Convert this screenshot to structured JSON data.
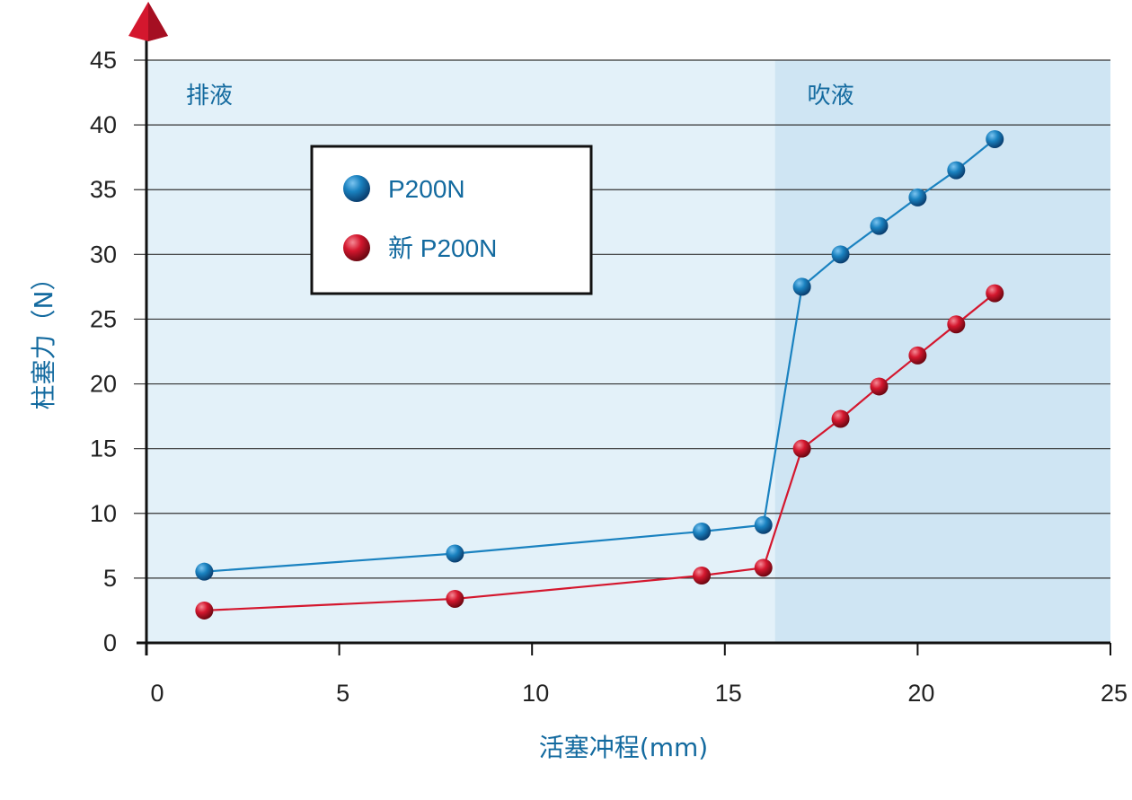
{
  "chart_data": {
    "type": "line",
    "xlabel": "活塞冲程(mm)",
    "ylabel": "柱塞力（N）",
    "xlim": [
      0,
      25
    ],
    "ylim": [
      0,
      45
    ],
    "x_ticks": [
      0,
      5,
      10,
      15,
      20,
      25
    ],
    "y_ticks": [
      0,
      5,
      10,
      15,
      20,
      25,
      30,
      35,
      40,
      45
    ],
    "grid": "horizontal",
    "regions": [
      {
        "label": "排液",
        "x_start": 0,
        "x_end": 16.3,
        "color": "#e3f1f9"
      },
      {
        "label": "吹液",
        "x_start": 16.3,
        "x_end": 25,
        "color": "#cfe5f3"
      }
    ],
    "legend_position": "upper-left",
    "series": [
      {
        "name": "P200N",
        "color": "#1a82c0",
        "x": [
          1.5,
          8,
          14.4,
          16,
          17,
          18,
          19,
          20,
          21,
          22
        ],
        "y": [
          5.5,
          6.9,
          8.6,
          9.1,
          27.5,
          30,
          32.2,
          34.4,
          36.5,
          38.9
        ]
      },
      {
        "name": "新 P200N",
        "color": "#d4172e",
        "x": [
          1.5,
          8,
          14.4,
          16,
          17,
          18,
          19,
          20,
          21,
          22
        ],
        "y": [
          2.5,
          3.4,
          5.2,
          5.8,
          15,
          17.3,
          19.8,
          22.2,
          24.6,
          27
        ]
      }
    ]
  }
}
